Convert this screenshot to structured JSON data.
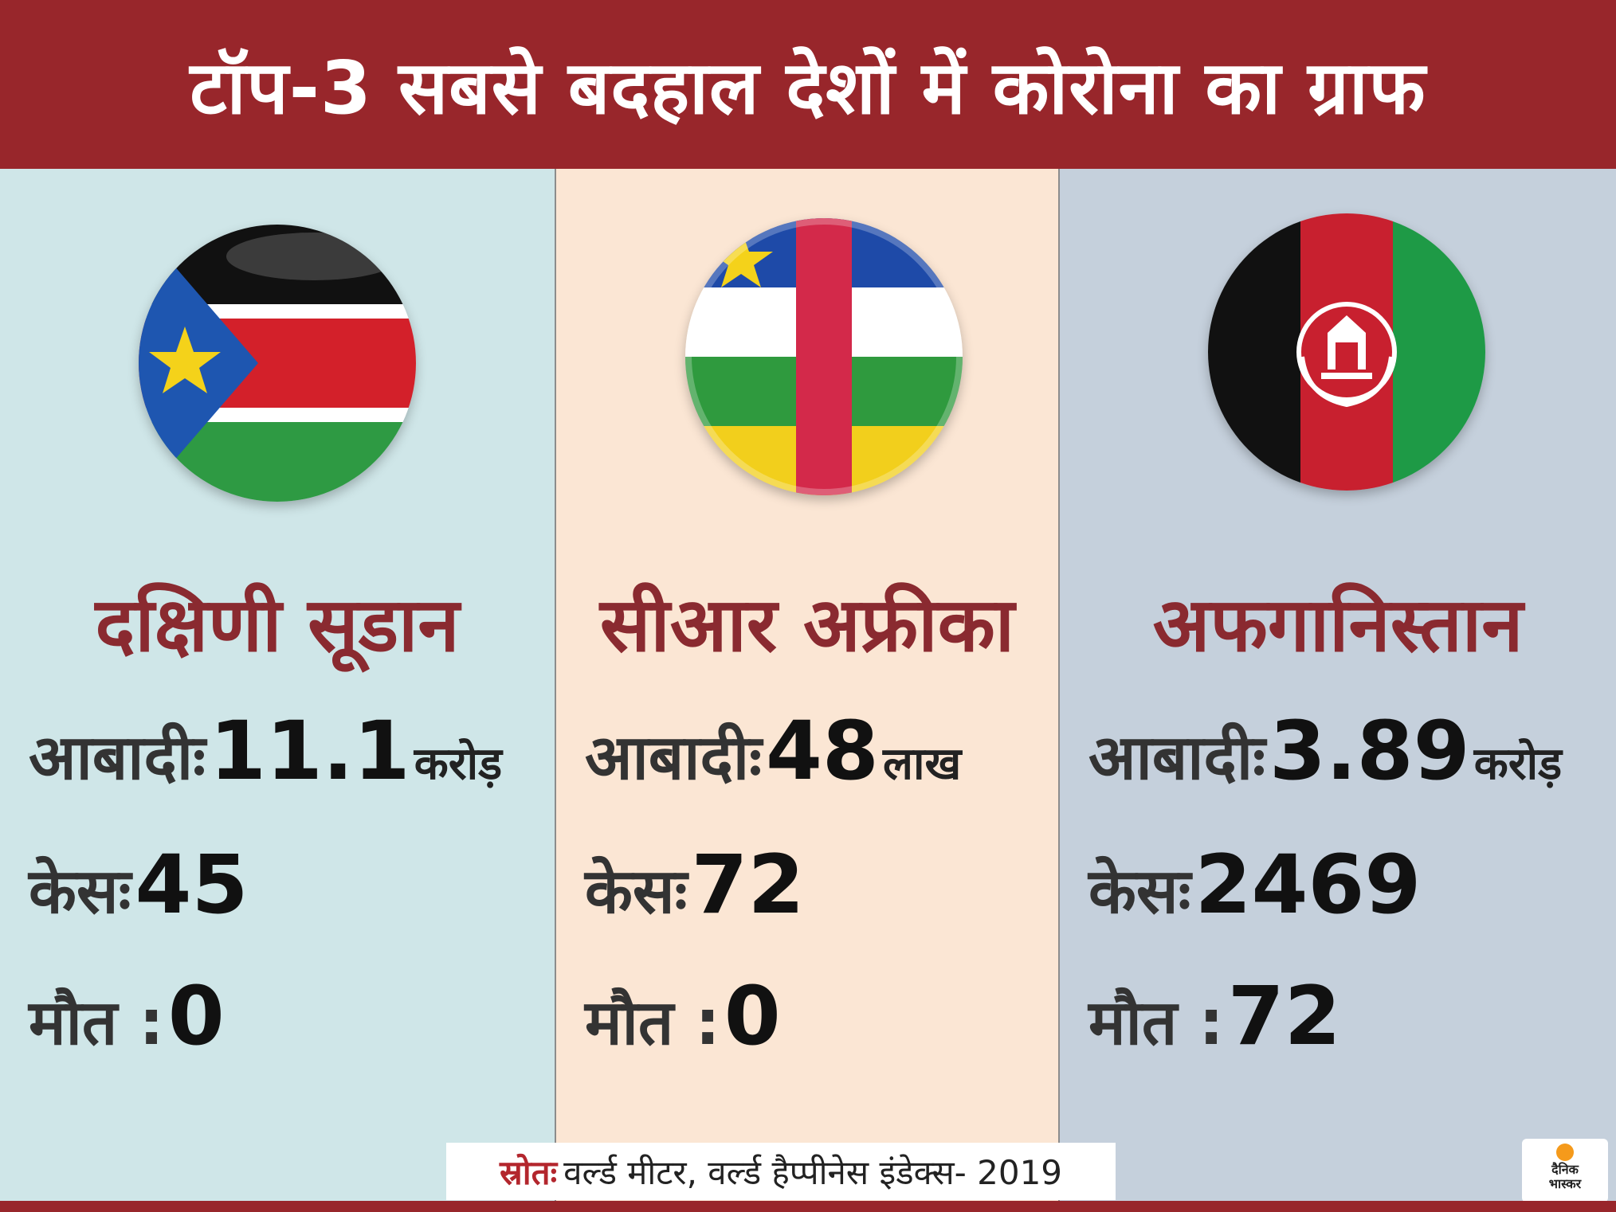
{
  "title": "टॉप-3 सबसे बदहाल देशों में कोरोना का ग्राफ",
  "countries": [
    {
      "name": "दक्षिणी सूडान",
      "flag_icon": "south-sudan-flag-icon",
      "population_label": "आबादीः",
      "population_value": "11.1",
      "population_unit": "करोड़",
      "cases_label": "केसः",
      "cases_value": "45",
      "deaths_label": "मौत :",
      "deaths_value": "0"
    },
    {
      "name": "सीआर अफ्रीका",
      "flag_icon": "central-african-republic-flag-icon",
      "population_label": "आबादीः",
      "population_value": "48",
      "population_unit": "लाख",
      "cases_label": "केसः",
      "cases_value": "72",
      "deaths_label": "मौत :",
      "deaths_value": "0"
    },
    {
      "name": "अफगानिस्तान",
      "flag_icon": "afghanistan-flag-icon",
      "population_label": "आबादीः",
      "population_value": "3.89",
      "population_unit": "करोड़",
      "cases_label": "केसः",
      "cases_value": "2469",
      "deaths_label": "मौत :",
      "deaths_value": "72"
    }
  ],
  "source": {
    "label": "स्रोतः",
    "text": "वर्ल्ड मीटर, वर्ल्ड हैप्पीनेस इंडेक्स- 2019"
  },
  "logo": {
    "line1": "दैनिक",
    "line2": "भास्कर"
  },
  "colors": {
    "header": "#98262b",
    "country_name": "#8a2a30",
    "col1_bg": "#cfe6e8",
    "col2_bg": "#fbe6d4",
    "col3_bg": "#c5d0dc"
  }
}
